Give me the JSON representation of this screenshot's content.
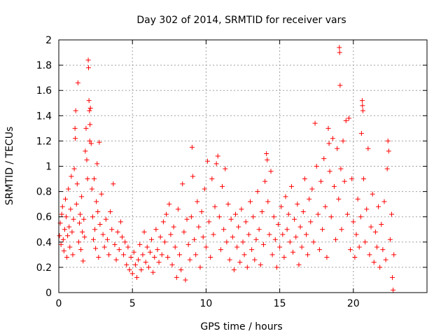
{
  "chart_data": {
    "type": "scatter",
    "title": "Day 302 of 2014, SRMTID for receiver vars",
    "xlabel": "GPS time / hours",
    "ylabel": "SRMTID / TECUs",
    "xlim": [
      0,
      25
    ],
    "ylim": [
      0,
      2
    ],
    "x_ticks": [
      0,
      5,
      10,
      15,
      20
    ],
    "x_tick_labels": [
      "0",
      "5",
      "10",
      "15",
      "20"
    ],
    "y_ticks": [
      0,
      0.2,
      0.4,
      0.6,
      0.8,
      1,
      1.2,
      1.4,
      1.6,
      1.8,
      2
    ],
    "y_tick_labels": [
      "0",
      "0.2",
      "0.4",
      "0.6",
      "0.8",
      "1",
      "1.2",
      "1.4",
      "1.6",
      "1.8",
      "2"
    ],
    "grid": true,
    "marker": "+",
    "color": "#ff0000",
    "series": [
      {
        "name": "SRMTID",
        "points": [
          [
            0.05,
            0.45
          ],
          [
            0.1,
            0.55
          ],
          [
            0.15,
            0.38
          ],
          [
            0.2,
            0.62
          ],
          [
            0.25,
            0.68
          ],
          [
            0.3,
            0.42
          ],
          [
            0.35,
            0.33
          ],
          [
            0.4,
            0.5
          ],
          [
            0.45,
            0.74
          ],
          [
            0.5,
            0.6
          ],
          [
            0.55,
            0.28
          ],
          [
            0.6,
            0.45
          ],
          [
            0.65,
            0.82
          ],
          [
            0.7,
            0.52
          ],
          [
            0.75,
            0.36
          ],
          [
            0.8,
            0.66
          ],
          [
            0.85,
            0.92
          ],
          [
            0.9,
            0.48
          ],
          [
            0.95,
            0.3
          ],
          [
            1.0,
            0.58
          ],
          [
            1.05,
            0.98
          ],
          [
            1.1,
            1.3
          ],
          [
            1.12,
            1.22
          ],
          [
            1.15,
            1.44
          ],
          [
            1.2,
            0.7
          ],
          [
            1.25,
            0.86
          ],
          [
            1.3,
            1.66
          ],
          [
            1.35,
            0.4
          ],
          [
            1.4,
            0.55
          ],
          [
            1.45,
            0.62
          ],
          [
            1.5,
            0.34
          ],
          [
            1.55,
            0.76
          ],
          [
            1.6,
            0.48
          ],
          [
            1.65,
            0.25
          ],
          [
            1.7,
            0.58
          ],
          [
            1.75,
            0.44
          ],
          [
            1.8,
            1.12
          ],
          [
            1.85,
            1.3
          ],
          [
            1.9,
            1.05
          ],
          [
            1.95,
            0.9
          ],
          [
            2.0,
            1.84
          ],
          [
            2.02,
            1.78
          ],
          [
            2.05,
            1.52
          ],
          [
            2.08,
            1.44
          ],
          [
            2.1,
            1.2
          ],
          [
            2.12,
            1.33
          ],
          [
            2.15,
            1.46
          ],
          [
            2.2,
            1.18
          ],
          [
            2.25,
            0.82
          ],
          [
            2.3,
            0.6
          ],
          [
            2.35,
            0.42
          ],
          [
            2.4,
            0.9
          ],
          [
            2.45,
            0.5
          ],
          [
            2.5,
            0.35
          ],
          [
            2.55,
            0.72
          ],
          [
            2.6,
            1.02
          ],
          [
            2.65,
            0.64
          ],
          [
            2.7,
            0.28
          ],
          [
            2.75,
            1.19
          ],
          [
            2.8,
            0.54
          ],
          [
            2.9,
            0.78
          ],
          [
            3.0,
            0.46
          ],
          [
            3.1,
            0.36
          ],
          [
            3.2,
            0.58
          ],
          [
            3.3,
            0.42
          ],
          [
            3.4,
            0.3
          ],
          [
            3.5,
            0.64
          ],
          [
            3.6,
            0.5
          ],
          [
            3.7,
            0.86
          ],
          [
            3.8,
            0.38
          ],
          [
            3.9,
            0.26
          ],
          [
            4.0,
            0.48
          ],
          [
            4.1,
            0.34
          ],
          [
            4.2,
            0.56
          ],
          [
            4.3,
            0.44
          ],
          [
            4.4,
            0.3
          ],
          [
            4.5,
            0.4
          ],
          [
            4.6,
            0.22
          ],
          [
            4.7,
            0.36
          ],
          [
            4.8,
            0.18
          ],
          [
            4.9,
            0.28
          ],
          [
            5.0,
            0.15
          ],
          [
            5.1,
            0.32
          ],
          [
            5.2,
            0.22
          ],
          [
            5.3,
            0.12
          ],
          [
            5.4,
            0.26
          ],
          [
            5.5,
            0.38
          ],
          [
            5.6,
            0.18
          ],
          [
            5.7,
            0.3
          ],
          [
            5.8,
            0.48
          ],
          [
            5.9,
            0.24
          ],
          [
            6.0,
            0.36
          ],
          [
            6.1,
            0.2
          ],
          [
            6.2,
            0.32
          ],
          [
            6.3,
            0.42
          ],
          [
            6.4,
            0.16
          ],
          [
            6.5,
            0.28
          ],
          [
            6.6,
            0.5
          ],
          [
            6.7,
            0.34
          ],
          [
            6.8,
            0.24
          ],
          [
            6.9,
            0.44
          ],
          [
            7.0,
            0.3
          ],
          [
            7.1,
            0.56
          ],
          [
            7.2,
            0.4
          ],
          [
            7.3,
            0.62
          ],
          [
            7.4,
            0.28
          ],
          [
            7.5,
            0.7
          ],
          [
            7.6,
            0.46
          ],
          [
            7.7,
            0.22
          ],
          [
            7.8,
            0.52
          ],
          [
            7.9,
            0.36
          ],
          [
            8.0,
            0.12
          ],
          [
            8.1,
            0.66
          ],
          [
            8.2,
            0.3
          ],
          [
            8.3,
            0.18
          ],
          [
            8.4,
            0.86
          ],
          [
            8.5,
            0.48
          ],
          [
            8.6,
            0.1
          ],
          [
            8.7,
            0.58
          ],
          [
            8.8,
            0.38
          ],
          [
            8.9,
            0.26
          ],
          [
            9.0,
            0.6
          ],
          [
            9.05,
            1.15
          ],
          [
            9.1,
            0.92
          ],
          [
            9.2,
            0.42
          ],
          [
            9.3,
            0.3
          ],
          [
            9.4,
            0.72
          ],
          [
            9.5,
            0.52
          ],
          [
            9.6,
            0.2
          ],
          [
            9.7,
            0.64
          ],
          [
            9.8,
            0.44
          ],
          [
            9.9,
            0.82
          ],
          [
            10.0,
            0.36
          ],
          [
            10.1,
            1.04
          ],
          [
            10.2,
            0.56
          ],
          [
            10.3,
            0.28
          ],
          [
            10.4,
            0.9
          ],
          [
            10.5,
            0.46
          ],
          [
            10.6,
            0.68
          ],
          [
            10.7,
            1.02
          ],
          [
            10.8,
            1.08
          ],
          [
            10.9,
            0.6
          ],
          [
            11.0,
            0.34
          ],
          [
            11.1,
            0.84
          ],
          [
            11.2,
            0.5
          ],
          [
            11.3,
            0.98
          ],
          [
            11.4,
            0.4
          ],
          [
            11.5,
            0.7
          ],
          [
            11.6,
            0.26
          ],
          [
            11.7,
            0.58
          ],
          [
            11.8,
            0.44
          ],
          [
            11.9,
            0.18
          ],
          [
            12.0,
            0.62
          ],
          [
            12.1,
            0.36
          ],
          [
            12.2,
            0.52
          ],
          [
            12.3,
            0.24
          ],
          [
            12.4,
            0.66
          ],
          [
            12.5,
            0.4
          ],
          [
            12.6,
            0.3
          ],
          [
            12.7,
            0.56
          ],
          [
            12.8,
            0.2
          ],
          [
            12.9,
            0.46
          ],
          [
            13.0,
            0.72
          ],
          [
            13.1,
            0.34
          ],
          [
            13.2,
            0.6
          ],
          [
            13.3,
            0.26
          ],
          [
            13.4,
            0.42
          ],
          [
            13.5,
            0.8
          ],
          [
            13.6,
            0.5
          ],
          [
            13.7,
            0.22
          ],
          [
            13.8,
            0.64
          ],
          [
            13.9,
            0.38
          ],
          [
            14.0,
            0.88
          ],
          [
            14.1,
            1.1
          ],
          [
            14.15,
            1.05
          ],
          [
            14.2,
            0.72
          ],
          [
            14.3,
            0.46
          ],
          [
            14.4,
            0.96
          ],
          [
            14.5,
            0.3
          ],
          [
            14.6,
            0.6
          ],
          [
            14.7,
            0.42
          ],
          [
            14.8,
            0.2
          ],
          [
            14.9,
            0.54
          ],
          [
            15.0,
            0.36
          ],
          [
            15.1,
            0.68
          ],
          [
            15.2,
            0.46
          ],
          [
            15.3,
            0.28
          ],
          [
            15.4,
            0.76
          ],
          [
            15.5,
            0.5
          ],
          [
            15.6,
            0.62
          ],
          [
            15.7,
            0.4
          ],
          [
            15.8,
            0.84
          ],
          [
            15.9,
            0.32
          ],
          [
            16.0,
            0.58
          ],
          [
            16.1,
            0.44
          ],
          [
            16.2,
            0.7
          ],
          [
            16.3,
            0.22
          ],
          [
            16.4,
            0.52
          ],
          [
            16.5,
            0.36
          ],
          [
            16.6,
            0.64
          ],
          [
            16.7,
            0.9
          ],
          [
            16.8,
            0.46
          ],
          [
            16.9,
            0.3
          ],
          [
            17.0,
            0.74
          ],
          [
            17.1,
            0.56
          ],
          [
            17.2,
            0.82
          ],
          [
            17.3,
            0.4
          ],
          [
            17.4,
            1.34
          ],
          [
            17.5,
            1.0
          ],
          [
            17.6,
            0.62
          ],
          [
            17.7,
            0.34
          ],
          [
            17.8,
            0.88
          ],
          [
            17.9,
            0.5
          ],
          [
            18.0,
            1.06
          ],
          [
            18.1,
            0.68
          ],
          [
            18.2,
            0.28
          ],
          [
            18.3,
            1.3
          ],
          [
            18.35,
            1.18
          ],
          [
            18.4,
            0.96
          ],
          [
            18.5,
            0.6
          ],
          [
            18.6,
            1.22
          ],
          [
            18.7,
            0.84
          ],
          [
            18.8,
            0.42
          ],
          [
            18.9,
            1.14
          ],
          [
            19.0,
            0.74
          ],
          [
            19.05,
            1.94
          ],
          [
            19.07,
            1.9
          ],
          [
            19.1,
            1.64
          ],
          [
            19.15,
            0.98
          ],
          [
            19.2,
            0.5
          ],
          [
            19.3,
            1.2
          ],
          [
            19.4,
            0.88
          ],
          [
            19.5,
            1.36
          ],
          [
            19.6,
            0.62
          ],
          [
            19.7,
            1.38
          ],
          [
            19.8,
            0.34
          ],
          [
            19.9,
            0.9
          ],
          [
            20.0,
            0.56
          ],
          [
            20.1,
            0.28
          ],
          [
            20.2,
            0.46
          ],
          [
            20.3,
            0.74
          ],
          [
            20.4,
            0.36
          ],
          [
            20.5,
            0.6
          ],
          [
            20.55,
            1.26
          ],
          [
            20.6,
            1.52
          ],
          [
            20.62,
            1.48
          ],
          [
            20.65,
            1.44
          ],
          [
            20.7,
            0.9
          ],
          [
            20.8,
            0.4
          ],
          [
            20.9,
            0.66
          ],
          [
            21.0,
            1.14
          ],
          [
            21.1,
            0.3
          ],
          [
            21.2,
            0.52
          ],
          [
            21.3,
            0.78
          ],
          [
            21.4,
            0.24
          ],
          [
            21.5,
            0.48
          ],
          [
            21.6,
            0.36
          ],
          [
            21.7,
            0.68
          ],
          [
            21.8,
            0.2
          ],
          [
            21.9,
            0.54
          ],
          [
            22.0,
            0.34
          ],
          [
            22.1,
            0.72
          ],
          [
            22.2,
            0.26
          ],
          [
            22.3,
            0.98
          ],
          [
            22.35,
            1.2
          ],
          [
            22.4,
            1.12
          ],
          [
            22.5,
            0.42
          ],
          [
            22.6,
            0.62
          ],
          [
            22.65,
            0.12
          ],
          [
            22.7,
            0.02
          ],
          [
            22.75,
            0.3
          ]
        ]
      }
    ]
  }
}
